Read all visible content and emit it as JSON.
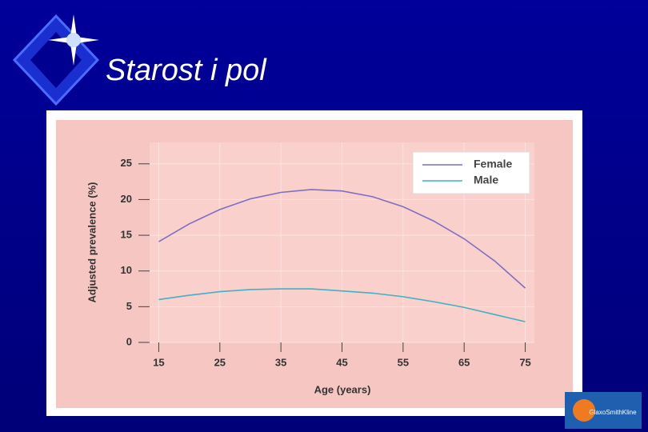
{
  "chart_data": {
    "type": "line",
    "title": "Starost i pol",
    "x_label": "Age (years)",
    "y_label": "Adjusted prevalence (%)",
    "x": [
      15,
      20,
      25,
      30,
      35,
      40,
      45,
      50,
      55,
      60,
      65,
      70,
      75
    ],
    "series": [
      {
        "name": "Female",
        "color": "#7d6fc2",
        "values": [
          14.1,
          16.6,
          18.6,
          20.1,
          21.0,
          21.4,
          21.2,
          20.4,
          19.0,
          17.0,
          14.5,
          11.4,
          7.6
        ]
      },
      {
        "name": "Male",
        "color": "#3fb2c4",
        "values": [
          6.0,
          6.6,
          7.1,
          7.4,
          7.5,
          7.5,
          7.2,
          6.9,
          6.4,
          5.7,
          4.9,
          3.9,
          2.9
        ]
      }
    ],
    "xlim": [
      13.5,
      76.5
    ],
    "xticks": [
      15,
      25,
      35,
      45,
      55,
      65,
      75
    ],
    "ylim": [
      0,
      28
    ],
    "yticks": [
      0,
      5,
      10,
      15,
      20,
      25
    ],
    "grid": true,
    "legend": "upper right",
    "logo": "GlaxoSmithKline"
  }
}
